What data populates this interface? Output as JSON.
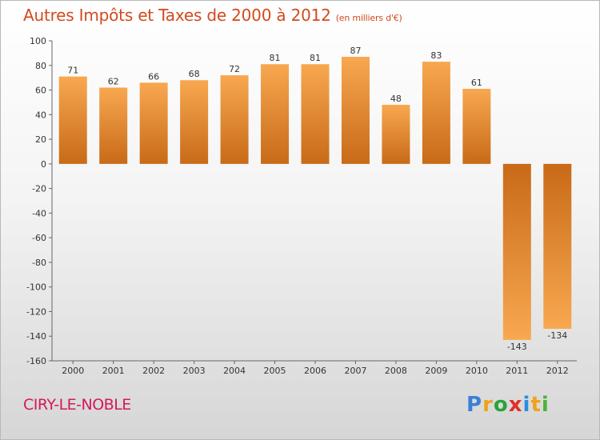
{
  "header": {
    "title": "Autres Impôts et Taxes de 2000 à 2012",
    "subtitle": "(en milliers d'€)"
  },
  "footer": {
    "place": "CIRY-LE-NOBLE",
    "logo_letters": [
      "P",
      "r",
      "o",
      "x",
      "i",
      "t",
      "i"
    ],
    "logo_colors": [
      "#3a7fd5",
      "#f0a21a",
      "#2aa33a",
      "#e0302a",
      "#2a8fe0",
      "#f0a21a",
      "#4bb33a"
    ]
  },
  "chart_data": {
    "type": "bar",
    "title": "Autres Impôts et Taxes de 2000 à 2012",
    "subtitle": "(en milliers d'€)",
    "categories": [
      "2000",
      "2001",
      "2002",
      "2003",
      "2004",
      "2005",
      "2006",
      "2007",
      "2008",
      "2009",
      "2010",
      "2011",
      "2012"
    ],
    "values": [
      71,
      62,
      66,
      68,
      72,
      81,
      81,
      87,
      48,
      83,
      61,
      -143,
      -134
    ],
    "data_labels": [
      "71",
      "62",
      "66",
      "68",
      "72",
      "81",
      "81",
      "87",
      "48",
      "83",
      "61",
      "-143",
      "-134"
    ],
    "yticks": [
      "100",
      "80",
      "60",
      "40",
      "20",
      "0",
      "-20",
      "-40",
      "-60",
      "-80",
      "-100",
      "-120",
      "-140",
      "-160"
    ],
    "ylim": [
      -160,
      100
    ],
    "grid": false,
    "colors": {
      "bar_light": "#f8a850",
      "bar_dark": "#c86a18",
      "axis": "#666666"
    }
  }
}
